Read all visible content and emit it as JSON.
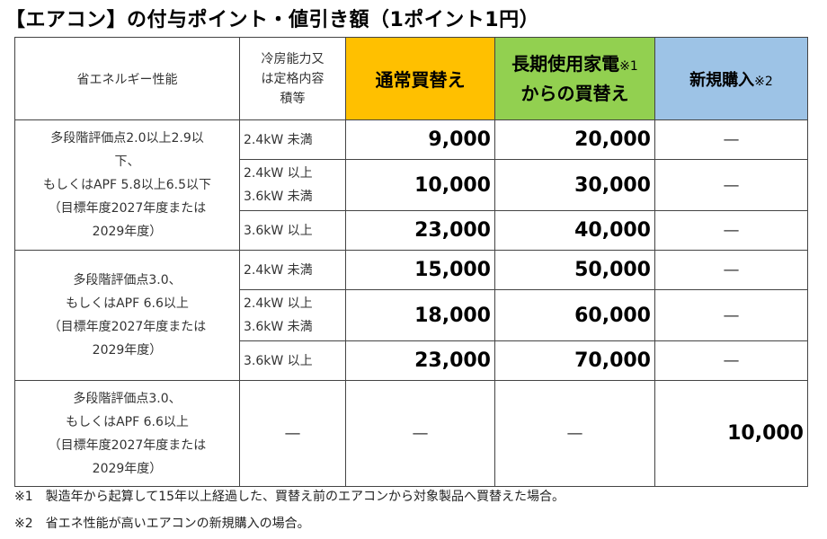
{
  "title": "【エアコン】の付与ポイント・値引き額（1ポイント1円）",
  "headers": {
    "performance": "省エネルギー性能",
    "capacity_lines": [
      "冷房能力又",
      "は定格内容",
      "積等"
    ],
    "normal": "通常買替え",
    "long_line1": "長期使用家電",
    "long_note": "※1",
    "long_line2": "からの買替え",
    "new": "新規購入",
    "new_note": "※2"
  },
  "groups": [
    {
      "performance_lines": [
        "多段階評価点2.0以上2.9以",
        "下、",
        "もしくはAPF 5.8以上6.5以下",
        "（目標年度2027年度または",
        "2029年度）"
      ],
      "rows": [
        {
          "capacity": [
            "2.4kW 未満"
          ],
          "normal": "9,000",
          "long": "20,000",
          "new": "—"
        },
        {
          "capacity": [
            "2.4kW 以上",
            "3.6kW 未満"
          ],
          "normal": "10,000",
          "long": "30,000",
          "new": "—"
        },
        {
          "capacity": [
            "3.6kW 以上"
          ],
          "normal": "23,000",
          "long": "40,000",
          "new": "—"
        }
      ]
    },
    {
      "performance_lines": [
        "多段階評価点3.0、",
        "もしくはAPF 6.6以上",
        "（目標年度2027年度または",
        "2029年度）"
      ],
      "rows": [
        {
          "capacity": [
            "2.4kW 未満"
          ],
          "normal": "15,000",
          "long": "50,000",
          "new": "—"
        },
        {
          "capacity": [
            "2.4kW 以上",
            "3.6kW 未満"
          ],
          "normal": "18,000",
          "long": "60,000",
          "new": "—"
        },
        {
          "capacity": [
            "3.6kW 以上"
          ],
          "normal": "23,000",
          "long": "70,000",
          "new": "—"
        }
      ]
    },
    {
      "performance_lines": [
        "多段階評価点3.0、",
        "もしくはAPF 6.6以上",
        "（目標年度2027年度または",
        "2029年度）"
      ],
      "capacity": "—",
      "normal": "—",
      "long": "—",
      "new": "10,000"
    }
  ],
  "notes": [
    "※1　製造年から起算して15年以上経過した、買替え前のエアコンから対象製品へ買替えた場合。",
    "※2　省エネ性能が高いエアコンの新規購入の場合。"
  ]
}
